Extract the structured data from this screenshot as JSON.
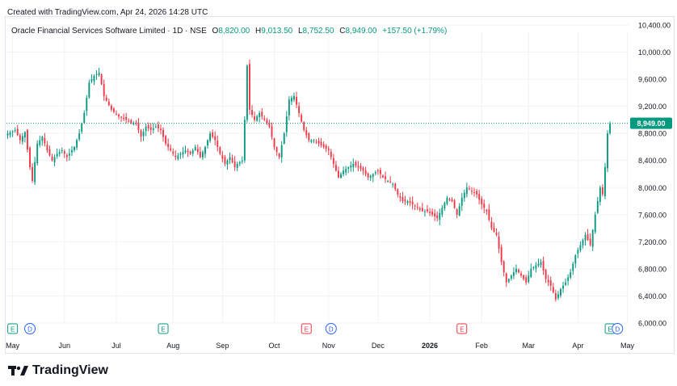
{
  "header": {
    "created_text": "Created with TradingView.com, Apr 24, 2026 14:28 UTC"
  },
  "legend": {
    "symbol": "Oracle Financial Services Software Limited · 1D · NSE",
    "o_label": "O",
    "o_value": "8,820.00",
    "h_label": "H",
    "h_value": "9,013.50",
    "l_label": "L",
    "l_value": "8,752.50",
    "c_label": "C",
    "c_value": "8,949.00",
    "change": "+157.50 (+1.79%)"
  },
  "brand": {
    "name": "TradingView"
  },
  "colors": {
    "up": "#089981",
    "down": "#f23645",
    "text": "#131722",
    "grid": "#f0f3fa"
  },
  "chart_data": {
    "type": "candlestick",
    "ylim": [
      6000,
      10400
    ],
    "y_ticks": [
      10400,
      10000,
      9600,
      9200,
      8800,
      8400,
      8000,
      7600,
      7200,
      6800,
      6400,
      6000
    ],
    "y_tick_labels": [
      "10,400.00",
      "10,000.00",
      "9,600.00",
      "9,200.00",
      "8,800.00",
      "8,400.00",
      "8,000.00",
      "7,600.00",
      "7,200.00",
      "6,800.00",
      "6,400.00",
      "6,000.00"
    ],
    "x_labels": [
      {
        "label": "May",
        "index": 2
      },
      {
        "label": "Jun",
        "index": 23
      },
      {
        "label": "Jul",
        "index": 44
      },
      {
        "label": "Aug",
        "index": 67
      },
      {
        "label": "Sep",
        "index": 87
      },
      {
        "label": "Oct",
        "index": 108
      },
      {
        "label": "Nov",
        "index": 130
      },
      {
        "label": "Dec",
        "index": 150
      },
      {
        "label": "2026",
        "index": 171
      },
      {
        "label": "Feb",
        "index": 192
      },
      {
        "label": "Mar",
        "index": 211
      },
      {
        "label": "Apr",
        "index": 231
      },
      {
        "label": "May",
        "index": 251
      }
    ],
    "last_price": 8949,
    "last_price_label": "8,949.00",
    "events": [
      {
        "type": "E",
        "index": 2
      },
      {
        "type": "D",
        "index": 9
      },
      {
        "type": "E",
        "index": 63
      },
      {
        "type": "E",
        "index": 121
      },
      {
        "type": "D",
        "index": 131
      },
      {
        "type": "E",
        "index": 184
      },
      {
        "type": "E",
        "index": 244
      },
      {
        "type": "D",
        "index": 247
      }
    ],
    "anchors": [
      [
        0,
        8800
      ],
      [
        3,
        8850
      ],
      [
        5,
        8700
      ],
      [
        7,
        8820
      ],
      [
        9,
        8300
      ],
      [
        10,
        8100
      ],
      [
        12,
        8650
      ],
      [
        14,
        8750
      ],
      [
        16,
        8550
      ],
      [
        18,
        8400
      ],
      [
        20,
        8500
      ],
      [
        22,
        8550
      ],
      [
        24,
        8450
      ],
      [
        27,
        8600
      ],
      [
        29,
        8800
      ],
      [
        31,
        9100
      ],
      [
        33,
        9550
      ],
      [
        35,
        9650
      ],
      [
        37,
        9700
      ],
      [
        39,
        9350
      ],
      [
        42,
        9150
      ],
      [
        45,
        9050
      ],
      [
        48,
        9000
      ],
      [
        50,
        8950
      ],
      [
        52,
        8950
      ],
      [
        54,
        8750
      ],
      [
        56,
        8900
      ],
      [
        58,
        8850
      ],
      [
        60,
        8900
      ],
      [
        62,
        8850
      ],
      [
        64,
        8650
      ],
      [
        66,
        8550
      ],
      [
        68,
        8450
      ],
      [
        70,
        8500
      ],
      [
        72,
        8550
      ],
      [
        74,
        8500
      ],
      [
        76,
        8600
      ],
      [
        78,
        8450
      ],
      [
        80,
        8600
      ],
      [
        82,
        8800
      ],
      [
        84,
        8700
      ],
      [
        86,
        8500
      ],
      [
        88,
        8350
      ],
      [
        90,
        8450
      ],
      [
        92,
        8300
      ],
      [
        93,
        8350
      ],
      [
        95,
        8400
      ],
      [
        96,
        9000
      ],
      [
        97,
        9800
      ],
      [
        98,
        9150
      ],
      [
        100,
        9000
      ],
      [
        102,
        9100
      ],
      [
        104,
        9000
      ],
      [
        106,
        8900
      ],
      [
        108,
        8600
      ],
      [
        110,
        8450
      ],
      [
        112,
        8800
      ],
      [
        114,
        9300
      ],
      [
        116,
        9350
      ],
      [
        118,
        9100
      ],
      [
        120,
        8850
      ],
      [
        122,
        8700
      ],
      [
        124,
        8700
      ],
      [
        126,
        8650
      ],
      [
        128,
        8600
      ],
      [
        130,
        8550
      ],
      [
        132,
        8350
      ],
      [
        134,
        8150
      ],
      [
        136,
        8250
      ],
      [
        138,
        8300
      ],
      [
        140,
        8350
      ],
      [
        142,
        8300
      ],
      [
        144,
        8250
      ],
      [
        146,
        8150
      ],
      [
        148,
        8200
      ],
      [
        150,
        8250
      ],
      [
        152,
        8150
      ],
      [
        154,
        8100
      ],
      [
        156,
        8050
      ],
      [
        158,
        7900
      ],
      [
        160,
        7800
      ],
      [
        162,
        7800
      ],
      [
        164,
        7750
      ],
      [
        166,
        7700
      ],
      [
        168,
        7650
      ],
      [
        170,
        7650
      ],
      [
        172,
        7600
      ],
      [
        174,
        7550
      ],
      [
        176,
        7700
      ],
      [
        178,
        7850
      ],
      [
        180,
        7800
      ],
      [
        182,
        7600
      ],
      [
        184,
        7850
      ],
      [
        186,
        8000
      ],
      [
        188,
        7950
      ],
      [
        190,
        7900
      ],
      [
        192,
        7750
      ],
      [
        194,
        7650
      ],
      [
        196,
        7400
      ],
      [
        198,
        7300
      ],
      [
        200,
        6900
      ],
      [
        202,
        6600
      ],
      [
        204,
        6700
      ],
      [
        206,
        6800
      ],
      [
        208,
        6700
      ],
      [
        210,
        6600
      ],
      [
        212,
        6800
      ],
      [
        214,
        6850
      ],
      [
        216,
        6900
      ],
      [
        218,
        6650
      ],
      [
        220,
        6550
      ],
      [
        222,
        6350
      ],
      [
        224,
        6500
      ],
      [
        226,
        6600
      ],
      [
        228,
        6750
      ],
      [
        230,
        7000
      ],
      [
        232,
        7150
      ],
      [
        234,
        7300
      ],
      [
        236,
        7150
      ],
      [
        238,
        7600
      ],
      [
        240,
        8000
      ],
      [
        241,
        7900
      ],
      [
        242,
        8300
      ],
      [
        243,
        8800
      ],
      [
        244,
        8949
      ]
    ]
  }
}
